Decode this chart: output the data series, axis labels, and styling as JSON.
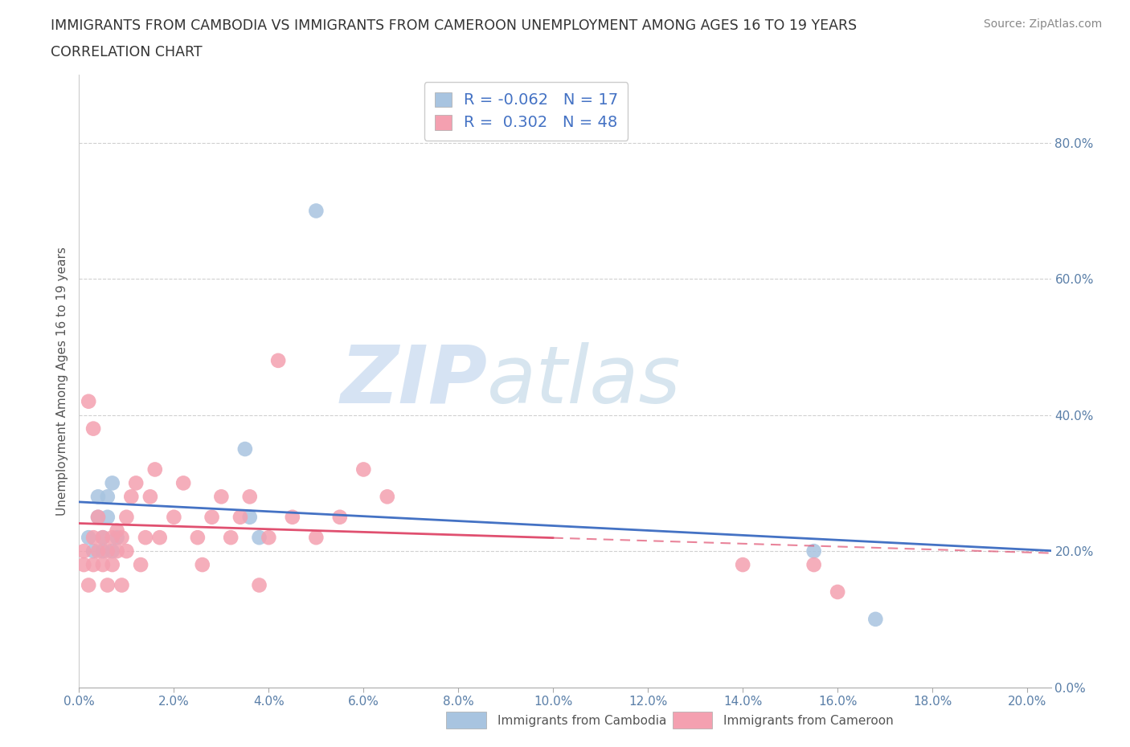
{
  "title_line1": "IMMIGRANTS FROM CAMBODIA VS IMMIGRANTS FROM CAMEROON UNEMPLOYMENT AMONG AGES 16 TO 19 YEARS",
  "title_line2": "CORRELATION CHART",
  "source": "Source: ZipAtlas.com",
  "ylabel": "Unemployment Among Ages 16 to 19 years",
  "xlim": [
    0.0,
    0.205
  ],
  "ylim": [
    0.0,
    0.9
  ],
  "yticks": [
    0.0,
    0.2,
    0.4,
    0.6,
    0.8
  ],
  "xticks": [
    0.0,
    0.02,
    0.04,
    0.06,
    0.08,
    0.1,
    0.12,
    0.14,
    0.16,
    0.18,
    0.2
  ],
  "cambodia_color": "#a8c4e0",
  "cameroon_color": "#f4a0b0",
  "cambodia_line_color": "#4472c4",
  "cameroon_line_color": "#e05070",
  "legend_label_cambodia": "Immigrants from Cambodia",
  "legend_label_cameroon": "Immigrants from Cameroon",
  "R_cambodia": -0.062,
  "N_cambodia": 17,
  "R_cameroon": 0.302,
  "N_cameroon": 48,
  "watermark_zip": "ZIP",
  "watermark_atlas": "atlas",
  "background_color": "#ffffff",
  "grid_color": "#cccccc",
  "cambodia_x": [
    0.002,
    0.003,
    0.004,
    0.004,
    0.005,
    0.005,
    0.006,
    0.006,
    0.007,
    0.007,
    0.008,
    0.035,
    0.036,
    0.038,
    0.05,
    0.155,
    0.168
  ],
  "cambodia_y": [
    0.22,
    0.2,
    0.25,
    0.28,
    0.22,
    0.2,
    0.28,
    0.25,
    0.3,
    0.2,
    0.22,
    0.35,
    0.25,
    0.22,
    0.7,
    0.2,
    0.1
  ],
  "cameroon_x": [
    0.001,
    0.001,
    0.002,
    0.002,
    0.003,
    0.003,
    0.003,
    0.004,
    0.004,
    0.005,
    0.005,
    0.006,
    0.006,
    0.007,
    0.007,
    0.008,
    0.008,
    0.009,
    0.009,
    0.01,
    0.01,
    0.011,
    0.012,
    0.013,
    0.014,
    0.015,
    0.016,
    0.017,
    0.02,
    0.022,
    0.025,
    0.026,
    0.028,
    0.03,
    0.032,
    0.034,
    0.036,
    0.038,
    0.04,
    0.042,
    0.045,
    0.05,
    0.055,
    0.06,
    0.065,
    0.14,
    0.155,
    0.16
  ],
  "cameroon_y": [
    0.2,
    0.18,
    0.42,
    0.15,
    0.38,
    0.22,
    0.18,
    0.25,
    0.2,
    0.22,
    0.18,
    0.2,
    0.15,
    0.22,
    0.18,
    0.23,
    0.2,
    0.22,
    0.15,
    0.25,
    0.2,
    0.28,
    0.3,
    0.18,
    0.22,
    0.28,
    0.32,
    0.22,
    0.25,
    0.3,
    0.22,
    0.18,
    0.25,
    0.28,
    0.22,
    0.25,
    0.28,
    0.15,
    0.22,
    0.48,
    0.25,
    0.22,
    0.25,
    0.32,
    0.28,
    0.18,
    0.18,
    0.14
  ]
}
